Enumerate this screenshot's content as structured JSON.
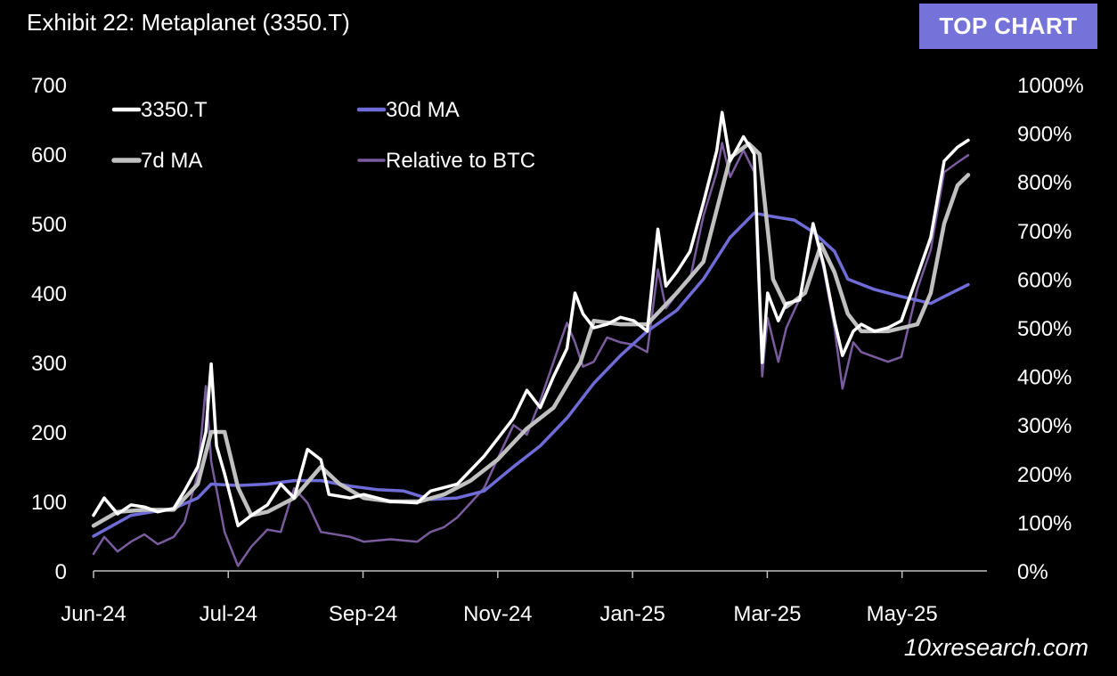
{
  "header": {
    "title": "Exhibit 22: Metaplanet (3350.T)",
    "badge": "TOP CHART"
  },
  "footer": {
    "source": "10xresearch.com"
  },
  "colors": {
    "price": "#ffffff",
    "ma7": "#c0c0c0",
    "ma30": "#6f6cd8",
    "rel_btc": "#7a5c9e",
    "badge_bg": "#7573d9"
  },
  "chart_data": {
    "type": "line",
    "title": "",
    "x_ticks": [
      "Jun-24",
      "Jul-24",
      "Sep-24",
      "Nov-24",
      "Jan-25",
      "Mar-25",
      "May-25"
    ],
    "x_range": [
      "2024-06-01",
      "2025-05-01"
    ],
    "y_left": {
      "range": [
        0,
        700
      ],
      "ticks": [
        0,
        100,
        200,
        300,
        400,
        500,
        600,
        700
      ]
    },
    "y_right": {
      "range": [
        0,
        1000
      ],
      "ticks": [
        "0%",
        "100%",
        "200%",
        "300%",
        "400%",
        "500%",
        "600%",
        "700%",
        "800%",
        "900%",
        "1000%"
      ]
    },
    "legend_position": "top-left",
    "series": [
      {
        "name": "3350.T",
        "axis": "left",
        "color": "#ffffff",
        "width": 3.5,
        "points": [
          [
            "2024-06-01",
            80
          ],
          [
            "2024-06-05",
            105
          ],
          [
            "2024-06-10",
            82
          ],
          [
            "2024-06-15",
            95
          ],
          [
            "2024-06-20",
            92
          ],
          [
            "2024-06-25",
            85
          ],
          [
            "2024-07-01",
            90
          ],
          [
            "2024-07-05",
            115
          ],
          [
            "2024-07-10",
            150
          ],
          [
            "2024-07-13",
            200
          ],
          [
            "2024-07-15",
            298
          ],
          [
            "2024-07-17",
            180
          ],
          [
            "2024-07-20",
            140
          ],
          [
            "2024-07-25",
            65
          ],
          [
            "2024-07-30",
            80
          ],
          [
            "2024-08-05",
            95
          ],
          [
            "2024-08-10",
            125
          ],
          [
            "2024-08-15",
            105
          ],
          [
            "2024-08-20",
            175
          ],
          [
            "2024-08-25",
            160
          ],
          [
            "2024-08-28",
            110
          ],
          [
            "2024-09-05",
            105
          ],
          [
            "2024-09-10",
            110
          ],
          [
            "2024-09-20",
            100
          ],
          [
            "2024-09-30",
            98
          ],
          [
            "2024-10-05",
            115
          ],
          [
            "2024-10-10",
            120
          ],
          [
            "2024-10-15",
            125
          ],
          [
            "2024-10-20",
            145
          ],
          [
            "2024-10-25",
            165
          ],
          [
            "2024-10-30",
            190
          ],
          [
            "2024-11-05",
            220
          ],
          [
            "2024-11-10",
            260
          ],
          [
            "2024-11-15",
            235
          ],
          [
            "2024-11-20",
            280
          ],
          [
            "2024-11-25",
            320
          ],
          [
            "2024-11-28",
            400
          ],
          [
            "2024-12-01",
            370
          ],
          [
            "2024-12-05",
            350
          ],
          [
            "2024-12-10",
            355
          ],
          [
            "2024-12-15",
            365
          ],
          [
            "2024-12-20",
            360
          ],
          [
            "2024-12-25",
            345
          ],
          [
            "2024-12-29",
            492
          ],
          [
            "2025-01-01",
            410
          ],
          [
            "2025-01-05",
            430
          ],
          [
            "2025-01-10",
            460
          ],
          [
            "2025-01-15",
            530
          ],
          [
            "2025-01-20",
            605
          ],
          [
            "2025-01-22",
            660
          ],
          [
            "2025-01-25",
            590
          ],
          [
            "2025-01-30",
            625
          ],
          [
            "2025-02-03",
            600
          ],
          [
            "2025-02-06",
            300
          ],
          [
            "2025-02-08",
            400
          ],
          [
            "2025-02-12",
            360
          ],
          [
            "2025-02-15",
            385
          ],
          [
            "2025-02-20",
            390
          ],
          [
            "2025-02-25",
            500
          ],
          [
            "2025-03-01",
            440
          ],
          [
            "2025-03-05",
            360
          ],
          [
            "2025-03-08",
            310
          ],
          [
            "2025-03-12",
            345
          ],
          [
            "2025-03-15",
            355
          ],
          [
            "2025-03-20",
            345
          ],
          [
            "2025-03-25",
            350
          ],
          [
            "2025-03-30",
            360
          ],
          [
            "2025-04-05",
            425
          ],
          [
            "2025-04-10",
            480
          ],
          [
            "2025-04-15",
            590
          ],
          [
            "2025-04-20",
            610
          ],
          [
            "2025-04-24",
            620
          ]
        ]
      },
      {
        "name": "30d MA",
        "axis": "left",
        "color": "#6f6cd8",
        "width": 3.5,
        "points": [
          [
            "2024-06-01",
            50
          ],
          [
            "2024-06-15",
            80
          ],
          [
            "2024-07-01",
            90
          ],
          [
            "2024-07-10",
            105
          ],
          [
            "2024-07-15",
            125
          ],
          [
            "2024-07-25",
            123
          ],
          [
            "2024-08-05",
            125
          ],
          [
            "2024-08-15",
            130
          ],
          [
            "2024-08-25",
            130
          ],
          [
            "2024-09-05",
            122
          ],
          [
            "2024-09-15",
            117
          ],
          [
            "2024-09-25",
            115
          ],
          [
            "2024-10-05",
            103
          ],
          [
            "2024-10-15",
            105
          ],
          [
            "2024-10-25",
            115
          ],
          [
            "2024-11-05",
            150
          ],
          [
            "2024-11-15",
            180
          ],
          [
            "2024-11-25",
            220
          ],
          [
            "2024-12-05",
            270
          ],
          [
            "2024-12-15",
            310
          ],
          [
            "2024-12-25",
            345
          ],
          [
            "2025-01-05",
            375
          ],
          [
            "2025-01-15",
            420
          ],
          [
            "2025-01-25",
            480
          ],
          [
            "2025-02-03",
            515
          ],
          [
            "2025-02-10",
            510
          ],
          [
            "2025-02-18",
            505
          ],
          [
            "2025-02-25",
            488
          ],
          [
            "2025-03-05",
            460
          ],
          [
            "2025-03-10",
            420
          ],
          [
            "2025-03-20",
            405
          ],
          [
            "2025-03-30",
            395
          ],
          [
            "2025-04-10",
            385
          ],
          [
            "2025-04-15",
            395
          ],
          [
            "2025-04-24",
            412
          ]
        ]
      },
      {
        "name": "7d MA",
        "axis": "left",
        "color": "#c0c0c0",
        "width": 4.5,
        "points": [
          [
            "2024-06-01",
            65
          ],
          [
            "2024-06-10",
            85
          ],
          [
            "2024-06-20",
            88
          ],
          [
            "2024-07-01",
            88
          ],
          [
            "2024-07-10",
            125
          ],
          [
            "2024-07-15",
            200
          ],
          [
            "2024-07-20",
            200
          ],
          [
            "2024-07-25",
            120
          ],
          [
            "2024-07-30",
            80
          ],
          [
            "2024-08-05",
            85
          ],
          [
            "2024-08-15",
            105
          ],
          [
            "2024-08-25",
            150
          ],
          [
            "2024-09-01",
            125
          ],
          [
            "2024-09-10",
            105
          ],
          [
            "2024-09-20",
            100
          ],
          [
            "2024-10-01",
            100
          ],
          [
            "2024-10-10",
            110
          ],
          [
            "2024-10-20",
            130
          ],
          [
            "2024-10-30",
            160
          ],
          [
            "2024-11-10",
            205
          ],
          [
            "2024-11-20",
            235
          ],
          [
            "2024-11-30",
            300
          ],
          [
            "2024-12-05",
            360
          ],
          [
            "2024-12-15",
            355
          ],
          [
            "2024-12-25",
            355
          ],
          [
            "2025-01-05",
            400
          ],
          [
            "2025-01-15",
            445
          ],
          [
            "2025-01-20",
            520
          ],
          [
            "2025-01-25",
            595
          ],
          [
            "2025-02-01",
            615
          ],
          [
            "2025-02-05",
            600
          ],
          [
            "2025-02-10",
            420
          ],
          [
            "2025-02-15",
            380
          ],
          [
            "2025-02-22",
            400
          ],
          [
            "2025-02-28",
            470
          ],
          [
            "2025-03-05",
            430
          ],
          [
            "2025-03-10",
            370
          ],
          [
            "2025-03-15",
            345
          ],
          [
            "2025-03-25",
            345
          ],
          [
            "2025-04-05",
            355
          ],
          [
            "2025-04-10",
            400
          ],
          [
            "2025-04-15",
            500
          ],
          [
            "2025-04-20",
            555
          ],
          [
            "2025-04-24",
            570
          ]
        ]
      },
      {
        "name": "Relative to BTC",
        "axis": "right",
        "color": "#7a5c9e",
        "width": 2.5,
        "points": [
          [
            "2024-06-01",
            35
          ],
          [
            "2024-06-05",
            70
          ],
          [
            "2024-06-10",
            40
          ],
          [
            "2024-06-15",
            60
          ],
          [
            "2024-06-20",
            75
          ],
          [
            "2024-06-25",
            55
          ],
          [
            "2024-07-01",
            70
          ],
          [
            "2024-07-05",
            100
          ],
          [
            "2024-07-10",
            200
          ],
          [
            "2024-07-13",
            380
          ],
          [
            "2024-07-15",
            225
          ],
          [
            "2024-07-20",
            80
          ],
          [
            "2024-07-25",
            10
          ],
          [
            "2024-07-30",
            50
          ],
          [
            "2024-08-05",
            85
          ],
          [
            "2024-08-10",
            80
          ],
          [
            "2024-08-15",
            170
          ],
          [
            "2024-08-20",
            140
          ],
          [
            "2024-08-25",
            80
          ],
          [
            "2024-09-05",
            70
          ],
          [
            "2024-09-10",
            60
          ],
          [
            "2024-09-20",
            65
          ],
          [
            "2024-09-30",
            60
          ],
          [
            "2024-10-05",
            80
          ],
          [
            "2024-10-10",
            90
          ],
          [
            "2024-10-15",
            110
          ],
          [
            "2024-10-20",
            140
          ],
          [
            "2024-10-25",
            170
          ],
          [
            "2024-10-30",
            230
          ],
          [
            "2024-11-05",
            300
          ],
          [
            "2024-11-10",
            280
          ],
          [
            "2024-11-15",
            350
          ],
          [
            "2024-11-20",
            430
          ],
          [
            "2024-11-25",
            510
          ],
          [
            "2024-11-28",
            470
          ],
          [
            "2024-12-01",
            420
          ],
          [
            "2024-12-05",
            430
          ],
          [
            "2024-12-10",
            480
          ],
          [
            "2024-12-15",
            470
          ],
          [
            "2024-12-20",
            465
          ],
          [
            "2024-12-25",
            450
          ],
          [
            "2024-12-29",
            620
          ],
          [
            "2025-01-01",
            540
          ],
          [
            "2025-01-05",
            570
          ],
          [
            "2025-01-10",
            600
          ],
          [
            "2025-01-15",
            730
          ],
          [
            "2025-01-20",
            820
          ],
          [
            "2025-01-22",
            880
          ],
          [
            "2025-01-25",
            810
          ],
          [
            "2025-01-30",
            865
          ],
          [
            "2025-02-03",
            820
          ],
          [
            "2025-02-06",
            400
          ],
          [
            "2025-02-08",
            520
          ],
          [
            "2025-02-12",
            430
          ],
          [
            "2025-02-15",
            500
          ],
          [
            "2025-02-20",
            560
          ],
          [
            "2025-02-25",
            710
          ],
          [
            "2025-03-01",
            620
          ],
          [
            "2025-03-05",
            500
          ],
          [
            "2025-03-08",
            375
          ],
          [
            "2025-03-12",
            470
          ],
          [
            "2025-03-15",
            450
          ],
          [
            "2025-03-20",
            440
          ],
          [
            "2025-03-25",
            430
          ],
          [
            "2025-03-30",
            440
          ],
          [
            "2025-04-05",
            580
          ],
          [
            "2025-04-10",
            660
          ],
          [
            "2025-04-15",
            820
          ],
          [
            "2025-04-20",
            840
          ],
          [
            "2025-04-24",
            855
          ]
        ]
      }
    ]
  }
}
